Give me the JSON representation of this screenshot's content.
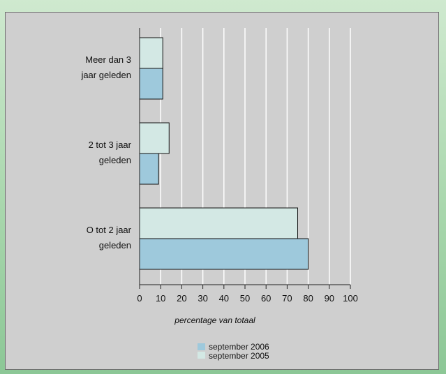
{
  "chart_data": {
    "type": "bar",
    "orientation": "horizontal",
    "categories": [
      "Meer dan 3 jaar geleden",
      "2 tot 3 jaar geleden",
      "O tot 2 jaar geleden"
    ],
    "category_lines": [
      [
        "Meer dan 3",
        "jaar geleden"
      ],
      [
        "2 tot 3 jaar",
        "geleden"
      ],
      [
        "O tot 2 jaar",
        "geleden"
      ]
    ],
    "series": [
      {
        "name": "september 2005",
        "values": [
          11,
          14,
          75
        ],
        "color": "#d3e8e4"
      },
      {
        "name": "september 2006",
        "values": [
          11,
          9,
          80
        ],
        "color": "#9ec9dc"
      }
    ],
    "xlabel": "percentage van totaal",
    "xlim": [
      0,
      100
    ],
    "xticks": [
      "0",
      "10",
      "20",
      "30",
      "40",
      "50",
      "60",
      "70",
      "80",
      "90",
      "100"
    ],
    "legend_labels": [
      "september 2006",
      "september 2005"
    ],
    "grid": true,
    "legend_position": "bottom-center"
  }
}
